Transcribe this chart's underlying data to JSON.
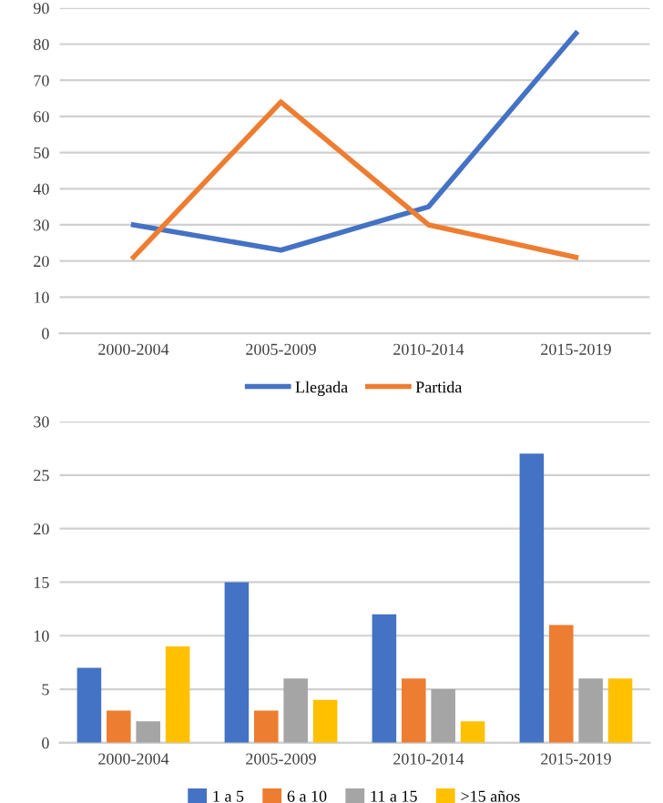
{
  "chart_data": [
    {
      "type": "line",
      "categories": [
        "2000-2004",
        "2005-2009",
        "2010-2014",
        "2015-2019"
      ],
      "series": [
        {
          "name": "Llegada",
          "color": "#4472c4",
          "values": [
            30,
            23,
            35,
            83
          ]
        },
        {
          "name": "Partida",
          "color": "#ed7d31",
          "values": [
            21,
            64,
            30,
            21
          ]
        }
      ],
      "ylim": [
        0,
        90
      ],
      "yticks": [
        0,
        10,
        20,
        30,
        40,
        50,
        60,
        70,
        80,
        90
      ],
      "grid": "y",
      "legend": "bottom",
      "marker": "none",
      "line_style": "solid"
    },
    {
      "type": "bar",
      "categories": [
        "2000-2004",
        "2005-2009",
        "2010-2014",
        "2015-2019"
      ],
      "series": [
        {
          "name": "1 a 5",
          "color": "#4472c4",
          "values": [
            7,
            15,
            12,
            27
          ]
        },
        {
          "name": "6 a 10",
          "color": "#ed7d31",
          "values": [
            3,
            3,
            6,
            11
          ]
        },
        {
          "name": "11 a 15",
          "color": "#a5a5a5",
          "values": [
            2,
            6,
            5,
            6
          ]
        },
        {
          "name": ">15 años",
          "color": "#ffc000",
          "values": [
            9,
            4,
            2,
            6
          ]
        }
      ],
      "ylim": [
        0,
        30
      ],
      "yticks": [
        0,
        5,
        10,
        15,
        20,
        25,
        30
      ],
      "grid": "y",
      "legend": "bottom"
    }
  ]
}
